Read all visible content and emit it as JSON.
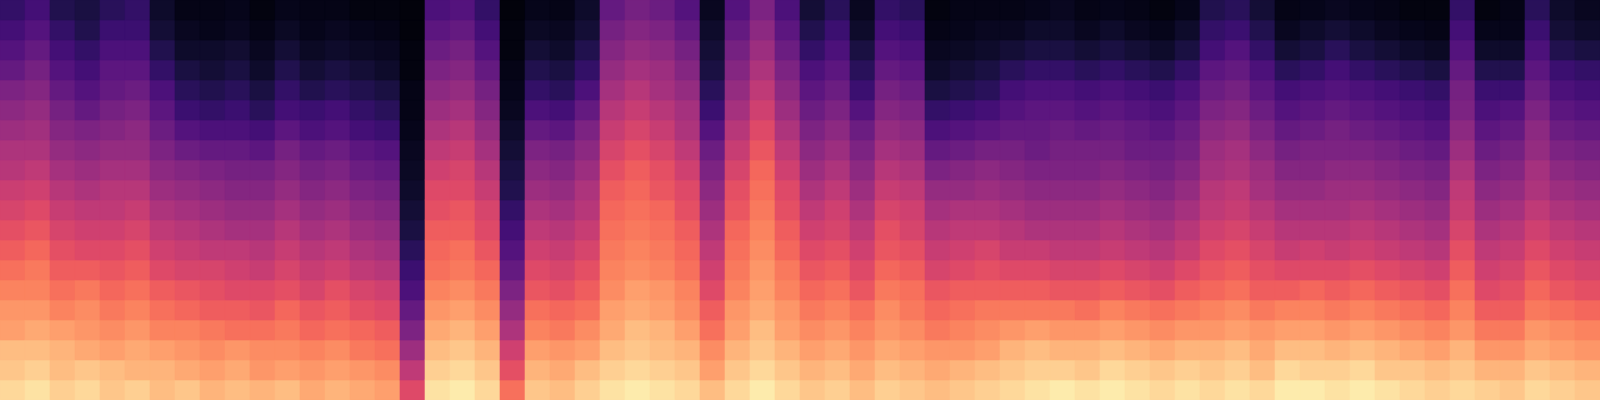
{
  "chart_data": {
    "type": "heatmap",
    "color": "magma",
    "tick_labels": false,
    "zlim": [
      0,
      100
    ],
    "cells": [
      [
        92,
        88,
        86,
        80,
        78,
        74,
        70,
        66,
        62,
        58,
        55,
        50,
        48,
        44,
        40,
        36,
        30,
        26,
        22,
        18
      ],
      [
        94,
        90,
        86,
        82,
        78,
        74,
        72,
        68,
        64,
        60,
        56,
        52,
        48,
        45,
        42,
        38,
        34,
        30,
        26,
        22
      ],
      [
        90,
        86,
        84,
        80,
        74,
        70,
        66,
        62,
        58,
        54,
        50,
        46,
        42,
        38,
        34,
        30,
        26,
        22,
        18,
        14
      ],
      [
        92,
        88,
        82,
        78,
        76,
        72,
        66,
        60,
        56,
        52,
        48,
        44,
        40,
        36,
        30,
        26,
        22,
        18,
        14,
        12
      ],
      [
        88,
        86,
        80,
        76,
        72,
        68,
        64,
        60,
        56,
        52,
        50,
        46,
        42,
        38,
        34,
        30,
        28,
        24,
        20,
        16
      ],
      [
        90,
        84,
        82,
        78,
        74,
        70,
        66,
        62,
        58,
        54,
        50,
        46,
        42,
        40,
        36,
        32,
        28,
        24,
        20,
        18
      ],
      [
        86,
        84,
        80,
        74,
        70,
        66,
        60,
        56,
        52,
        48,
        44,
        40,
        36,
        32,
        28,
        24,
        18,
        14,
        10,
        8
      ],
      [
        88,
        82,
        78,
        74,
        68,
        64,
        58,
        54,
        50,
        46,
        42,
        38,
        32,
        26,
        20,
        16,
        12,
        8,
        6,
        4
      ],
      [
        84,
        80,
        76,
        72,
        66,
        62,
        58,
        52,
        48,
        44,
        40,
        36,
        30,
        24,
        18,
        14,
        10,
        8,
        5,
        4
      ],
      [
        86,
        82,
        78,
        70,
        66,
        60,
        56,
        52,
        46,
        42,
        38,
        34,
        30,
        24,
        20,
        16,
        12,
        9,
        6,
        5
      ],
      [
        84,
        78,
        76,
        70,
        64,
        60,
        54,
        50,
        46,
        42,
        38,
        34,
        28,
        22,
        16,
        12,
        8,
        6,
        4,
        3
      ],
      [
        86,
        80,
        76,
        72,
        68,
        62,
        58,
        54,
        50,
        46,
        42,
        38,
        34,
        28,
        22,
        18,
        14,
        10,
        7,
        5
      ],
      [
        82,
        78,
        74,
        68,
        64,
        58,
        54,
        50,
        46,
        42,
        38,
        34,
        30,
        24,
        20,
        14,
        10,
        7,
        5,
        4
      ],
      [
        84,
        80,
        76,
        70,
        66,
        62,
        56,
        52,
        48,
        44,
        40,
        36,
        32,
        26,
        22,
        16,
        12,
        8,
        6,
        4
      ],
      [
        82,
        78,
        72,
        68,
        62,
        58,
        52,
        48,
        44,
        40,
        36,
        32,
        28,
        22,
        18,
        14,
        10,
        7,
        5,
        3
      ],
      [
        80,
        76,
        70,
        66,
        60,
        56,
        50,
        46,
        42,
        38,
        34,
        30,
        26,
        20,
        16,
        12,
        8,
        6,
        4,
        3
      ],
      [
        60,
        52,
        44,
        36,
        30,
        24,
        20,
        16,
        12,
        10,
        8,
        7,
        6,
        5,
        4,
        4,
        3,
        3,
        2,
        2
      ],
      [
        94,
        90,
        86,
        82,
        78,
        74,
        70,
        68,
        66,
        62,
        60,
        56,
        52,
        48,
        44,
        40,
        36,
        32,
        28,
        24
      ],
      [
        96,
        92,
        88,
        84,
        80,
        76,
        72,
        70,
        66,
        64,
        60,
        58,
        54,
        50,
        46,
        42,
        38,
        34,
        30,
        26
      ],
      [
        92,
        88,
        84,
        80,
        76,
        72,
        68,
        64,
        60,
        58,
        54,
        50,
        46,
        42,
        38,
        34,
        30,
        26,
        22,
        18
      ],
      [
        70,
        62,
        56,
        48,
        42,
        36,
        30,
        26,
        22,
        18,
        14,
        12,
        10,
        8,
        6,
        5,
        4,
        3,
        3,
        2
      ],
      [
        88,
        84,
        80,
        74,
        70,
        64,
        60,
        56,
        52,
        48,
        44,
        40,
        36,
        30,
        24,
        18,
        14,
        10,
        7,
        5
      ],
      [
        86,
        82,
        78,
        72,
        68,
        62,
        58,
        54,
        50,
        46,
        42,
        38,
        34,
        28,
        22,
        16,
        12,
        8,
        6,
        4
      ],
      [
        90,
        86,
        80,
        76,
        70,
        66,
        62,
        58,
        54,
        50,
        48,
        44,
        40,
        36,
        30,
        24,
        18,
        14,
        10,
        8
      ],
      [
        94,
        90,
        86,
        82,
        80,
        76,
        74,
        72,
        70,
        68,
        66,
        62,
        58,
        54,
        50,
        46,
        42,
        38,
        34,
        30
      ],
      [
        96,
        92,
        88,
        86,
        82,
        80,
        76,
        74,
        72,
        70,
        68,
        66,
        62,
        58,
        54,
        50,
        46,
        42,
        38,
        34
      ],
      [
        94,
        90,
        86,
        84,
        80,
        78,
        74,
        72,
        70,
        68,
        64,
        62,
        58,
        54,
        50,
        46,
        44,
        40,
        36,
        32
      ],
      [
        92,
        88,
        84,
        80,
        76,
        74,
        70,
        68,
        66,
        62,
        60,
        56,
        52,
        48,
        46,
        42,
        38,
        34,
        30,
        26
      ],
      [
        86,
        80,
        76,
        70,
        66,
        60,
        56,
        52,
        48,
        44,
        40,
        36,
        32,
        26,
        20,
        16,
        12,
        10,
        8,
        6
      ],
      [
        92,
        88,
        84,
        80,
        78,
        74,
        72,
        70,
        68,
        64,
        62,
        58,
        54,
        50,
        46,
        42,
        38,
        34,
        30,
        26
      ],
      [
        96,
        92,
        88,
        86,
        82,
        80,
        78,
        76,
        74,
        72,
        70,
        68,
        64,
        60,
        56,
        52,
        48,
        44,
        40,
        36
      ],
      [
        92,
        88,
        84,
        80,
        78,
        74,
        72,
        68,
        66,
        62,
        60,
        56,
        52,
        48,
        44,
        40,
        36,
        32,
        28,
        24
      ],
      [
        88,
        84,
        80,
        76,
        72,
        68,
        64,
        60,
        56,
        52,
        48,
        44,
        40,
        36,
        32,
        28,
        24,
        18,
        14,
        10
      ],
      [
        90,
        86,
        82,
        78,
        74,
        70,
        66,
        62,
        58,
        56,
        52,
        48,
        44,
        40,
        36,
        32,
        28,
        24,
        20,
        16
      ],
      [
        86,
        82,
        78,
        74,
        70,
        64,
        60,
        56,
        52,
        48,
        44,
        40,
        36,
        32,
        26,
        20,
        16,
        12,
        8,
        6
      ],
      [
        90,
        86,
        82,
        78,
        76,
        72,
        68,
        64,
        62,
        58,
        54,
        50,
        46,
        42,
        38,
        34,
        30,
        26,
        22,
        18
      ],
      [
        88,
        84,
        80,
        76,
        72,
        70,
        66,
        62,
        58,
        56,
        52,
        48,
        44,
        40,
        36,
        32,
        28,
        24,
        20,
        16
      ],
      [
        86,
        82,
        78,
        72,
        68,
        64,
        58,
        54,
        50,
        46,
        42,
        36,
        30,
        24,
        18,
        12,
        8,
        6,
        4,
        3
      ],
      [
        88,
        84,
        78,
        74,
        70,
        66,
        60,
        56,
        52,
        48,
        42,
        38,
        32,
        26,
        20,
        14,
        10,
        7,
        5,
        4
      ],
      [
        90,
        86,
        80,
        76,
        72,
        66,
        62,
        58,
        52,
        48,
        44,
        40,
        34,
        28,
        22,
        16,
        12,
        8,
        6,
        4
      ],
      [
        92,
        88,
        84,
        78,
        72,
        66,
        60,
        54,
        50,
        46,
        42,
        38,
        34,
        30,
        26,
        22,
        16,
        10,
        6,
        4
      ],
      [
        94,
        90,
        86,
        80,
        72,
        66,
        60,
        54,
        48,
        44,
        40,
        36,
        32,
        30,
        28,
        24,
        18,
        12,
        8,
        5
      ],
      [
        96,
        90,
        84,
        78,
        72,
        64,
        58,
        52,
        48,
        44,
        40,
        36,
        34,
        32,
        28,
        24,
        18,
        12,
        8,
        6
      ],
      [
        94,
        88,
        84,
        78,
        70,
        64,
        58,
        52,
        48,
        44,
        40,
        36,
        34,
        30,
        26,
        22,
        16,
        10,
        6,
        4
      ],
      [
        96,
        92,
        86,
        80,
        74,
        66,
        60,
        54,
        50,
        46,
        42,
        38,
        34,
        32,
        28,
        24,
        18,
        12,
        8,
        5
      ],
      [
        94,
        90,
        84,
        78,
        72,
        64,
        58,
        52,
        48,
        44,
        40,
        36,
        32,
        30,
        26,
        22,
        16,
        10,
        6,
        4
      ],
      [
        92,
        88,
        82,
        76,
        70,
        62,
        56,
        50,
        46,
        42,
        38,
        34,
        32,
        28,
        24,
        20,
        14,
        8,
        5,
        3
      ],
      [
        94,
        90,
        84,
        78,
        72,
        66,
        60,
        54,
        50,
        46,
        42,
        38,
        34,
        32,
        28,
        24,
        18,
        12,
        8,
        5
      ],
      [
        92,
        88,
        84,
        78,
        74,
        68,
        64,
        60,
        56,
        52,
        50,
        46,
        44,
        40,
        36,
        32,
        28,
        22,
        18,
        14
      ],
      [
        94,
        90,
        86,
        80,
        76,
        70,
        66,
        62,
        58,
        54,
        52,
        48,
        46,
        42,
        38,
        34,
        30,
        26,
        20,
        16
      ],
      [
        92,
        86,
        82,
        78,
        72,
        66,
        62,
        58,
        54,
        50,
        46,
        44,
        40,
        36,
        32,
        28,
        24,
        18,
        14,
        10
      ],
      [
        96,
        92,
        86,
        80,
        74,
        66,
        60,
        54,
        50,
        46,
        42,
        38,
        34,
        30,
        26,
        22,
        16,
        10,
        6,
        4
      ],
      [
        96,
        90,
        86,
        80,
        74,
        68,
        60,
        56,
        50,
        46,
        42,
        38,
        36,
        32,
        28,
        24,
        18,
        12,
        8,
        5
      ],
      [
        94,
        90,
        84,
        78,
        72,
        66,
        60,
        54,
        50,
        46,
        44,
        40,
        36,
        34,
        30,
        26,
        22,
        16,
        10,
        6
      ],
      [
        96,
        92,
        86,
        80,
        74,
        68,
        62,
        56,
        52,
        48,
        44,
        40,
        36,
        32,
        28,
        24,
        18,
        12,
        8,
        5
      ],
      [
        94,
        88,
        84,
        78,
        72,
        66,
        60,
        54,
        50,
        46,
        42,
        38,
        34,
        30,
        26,
        22,
        16,
        10,
        6,
        4
      ],
      [
        92,
        88,
        82,
        76,
        70,
        64,
        58,
        52,
        48,
        44,
        40,
        36,
        32,
        28,
        24,
        20,
        14,
        8,
        5,
        3
      ],
      [
        90,
        86,
        80,
        74,
        68,
        62,
        56,
        50,
        46,
        42,
        38,
        34,
        30,
        26,
        22,
        18,
        12,
        7,
        4,
        3
      ],
      [
        92,
        88,
        84,
        78,
        74,
        70,
        66,
        62,
        58,
        54,
        52,
        48,
        44,
        40,
        36,
        34,
        30,
        26,
        22,
        18
      ],
      [
        90,
        84,
        78,
        72,
        66,
        60,
        56,
        52,
        48,
        44,
        40,
        36,
        32,
        28,
        24,
        20,
        14,
        8,
        5,
        3
      ],
      [
        88,
        84,
        78,
        72,
        66,
        62,
        58,
        54,
        50,
        46,
        42,
        38,
        34,
        30,
        26,
        20,
        14,
        8,
        5,
        4
      ],
      [
        92,
        88,
        82,
        78,
        72,
        68,
        64,
        60,
        56,
        52,
        48,
        46,
        42,
        40,
        36,
        32,
        28,
        24,
        20,
        16
      ],
      [
        90,
        86,
        80,
        76,
        70,
        64,
        60,
        56,
        52,
        48,
        44,
        40,
        36,
        32,
        28,
        24,
        20,
        14,
        10,
        8
      ],
      [
        88,
        84,
        78,
        74,
        68,
        62,
        58,
        54,
        50,
        46,
        42,
        38,
        34,
        30,
        26,
        22,
        18,
        12,
        8,
        6
      ]
    ]
  }
}
